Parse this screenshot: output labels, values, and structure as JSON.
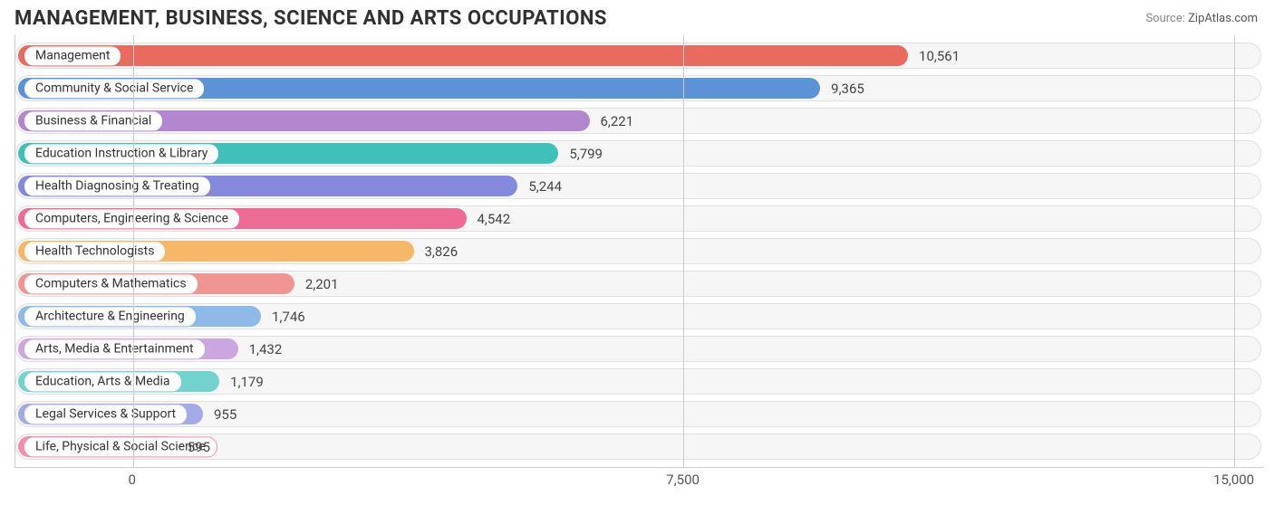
{
  "title": "MANAGEMENT, BUSINESS, SCIENCE AND ARTS OCCUPATIONS",
  "source_label": "Source:",
  "source_value": "ZipAtlas.com",
  "chart": {
    "type": "bar-horizontal",
    "x_min": -1600,
    "x_max": 15400,
    "x_ticks": [
      {
        "value": 0,
        "label": "0"
      },
      {
        "value": 7500,
        "label": "7,500"
      },
      {
        "value": 15000,
        "label": "15,000"
      }
    ],
    "track_bg": "#f6f6f6",
    "track_border": "#e0e0e0",
    "grid_color": "#cccccc",
    "label_bg": "#ffffff",
    "value_color": "#444444",
    "title_color": "#303030",
    "rows": [
      {
        "label": "Management",
        "value": 10561,
        "value_text": "10,561",
        "color": "#e96b5f"
      },
      {
        "label": "Community & Social Service",
        "value": 9365,
        "value_text": "9,365",
        "color": "#5b93d6"
      },
      {
        "label": "Business & Financial",
        "value": 6221,
        "value_text": "6,221",
        "color": "#b387cf"
      },
      {
        "label": "Education Instruction & Library",
        "value": 5799,
        "value_text": "5,799",
        "color": "#3fc0ba"
      },
      {
        "label": "Health Diagnosing & Treating",
        "value": 5244,
        "value_text": "5,244",
        "color": "#8389db"
      },
      {
        "label": "Computers, Engineering & Science",
        "value": 4542,
        "value_text": "4,542",
        "color": "#ed6b95"
      },
      {
        "label": "Health Technologists",
        "value": 3826,
        "value_text": "3,826",
        "color": "#f6b769"
      },
      {
        "label": "Computers & Mathematics",
        "value": 2201,
        "value_text": "2,201",
        "color": "#f19592"
      },
      {
        "label": "Architecture & Engineering",
        "value": 1746,
        "value_text": "1,746",
        "color": "#8dbae6"
      },
      {
        "label": "Arts, Media & Entertainment",
        "value": 1432,
        "value_text": "1,432",
        "color": "#caa8df"
      },
      {
        "label": "Education, Arts & Media",
        "value": 1179,
        "value_text": "1,179",
        "color": "#72d2cd"
      },
      {
        "label": "Legal Services & Support",
        "value": 955,
        "value_text": "955",
        "color": "#a4aae6"
      },
      {
        "label": "Life, Physical & Social Science",
        "value": 595,
        "value_text": "595",
        "color": "#f490af"
      }
    ]
  }
}
